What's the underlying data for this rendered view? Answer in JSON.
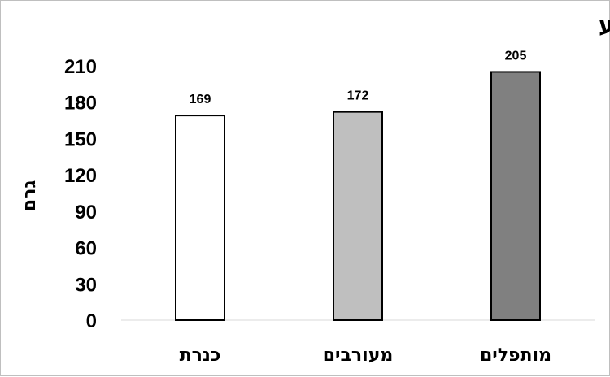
{
  "chart_data": {
    "type": "bar",
    "title": "משקל אצבע",
    "ylabel": "גרם",
    "xlabel": "",
    "categories": [
      "כנרת",
      "מעורבים",
      "מותפלים"
    ],
    "values": [
      169,
      172,
      205
    ],
    "bar_colors": [
      "#ffffff",
      "#bfbfbf",
      "#808080"
    ],
    "ylim": [
      0,
      210
    ],
    "yticks": [
      0,
      30,
      60,
      90,
      120,
      150,
      180,
      210
    ],
    "grid": false,
    "legend": "none",
    "data_labels": true
  }
}
